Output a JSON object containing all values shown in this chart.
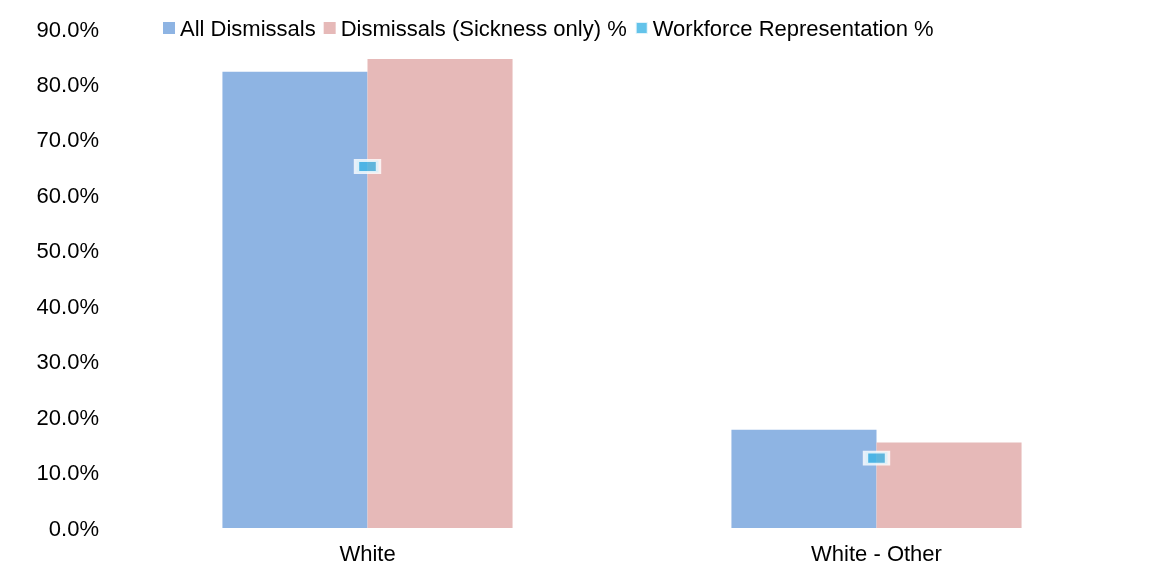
{
  "chart_data": {
    "type": "bar",
    "categories": [
      "White",
      "White - Other"
    ],
    "series": [
      {
        "name": "All Dismissals",
        "color": "#8eb4e3",
        "values": [
          82.3,
          17.7
        ]
      },
      {
        "name": "Dismissals (Sickness only) %",
        "color": "#e6b9b8",
        "values": [
          84.6,
          15.4
        ]
      },
      {
        "name": "Workforce Representation %",
        "type": "scatter",
        "color": "#3cb4e5",
        "x": [
          "White",
          "White - Other"
        ],
        "values": [
          65.2,
          12.6
        ]
      }
    ],
    "ylim": [
      0,
      90
    ],
    "yticks": [
      {
        "value": 0,
        "label": "0.0%"
      },
      {
        "value": 10,
        "label": "10.0%"
      },
      {
        "value": 20,
        "label": "20.0%"
      },
      {
        "value": 30,
        "label": "30.0%"
      },
      {
        "value": 40,
        "label": "40.0%"
      },
      {
        "value": 50,
        "label": "50.0%"
      },
      {
        "value": 60,
        "label": "60.0%"
      },
      {
        "value": 70,
        "label": "70.0%"
      },
      {
        "value": 80,
        "label": "80.0%"
      },
      {
        "value": 90,
        "label": "90.0%"
      }
    ],
    "grid": false,
    "legend": "top",
    "marker": "square"
  }
}
